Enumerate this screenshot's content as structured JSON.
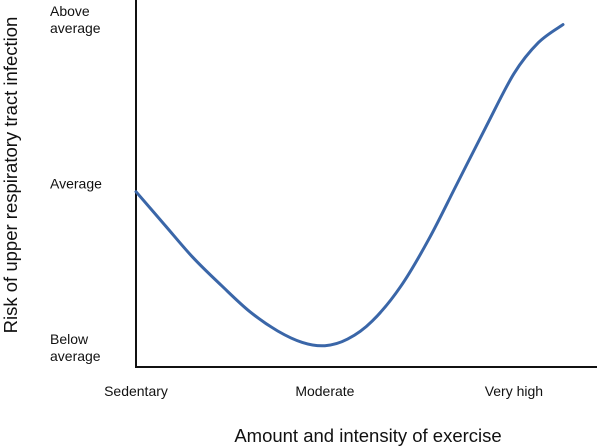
{
  "chart_data": {
    "type": "line",
    "title": "",
    "xlabel": "Amount and intensity of exercise",
    "ylabel": "Risk of upper respiratory tract infection",
    "x_ticks": [
      "Sedentary",
      "Moderate",
      "Very high"
    ],
    "y_ticks": [
      {
        "lines": [
          "Above",
          "average"
        ],
        "value": 2
      },
      {
        "lines": [
          "Average"
        ],
        "value": 1
      },
      {
        "lines": [
          "Below",
          "average"
        ],
        "value": 0
      }
    ],
    "xlim": [
      0,
      2.44
    ],
    "ylim": [
      -0.12,
      2.12
    ],
    "grid": false,
    "legend": "none",
    "series": [
      {
        "color": "#3a66a8",
        "x": [
          0,
          0.15,
          0.3,
          0.45,
          0.6,
          0.75,
          0.88,
          1,
          1.12,
          1.25,
          1.4,
          1.55,
          1.7,
          1.85,
          2,
          2.13,
          2.26
        ],
        "y": [
          0.95,
          0.75,
          0.55,
          0.38,
          0.22,
          0.1,
          0.03,
          0.01,
          0.05,
          0.16,
          0.37,
          0.66,
          1.0,
          1.34,
          1.67,
          1.86,
          1.97
        ]
      }
    ]
  }
}
